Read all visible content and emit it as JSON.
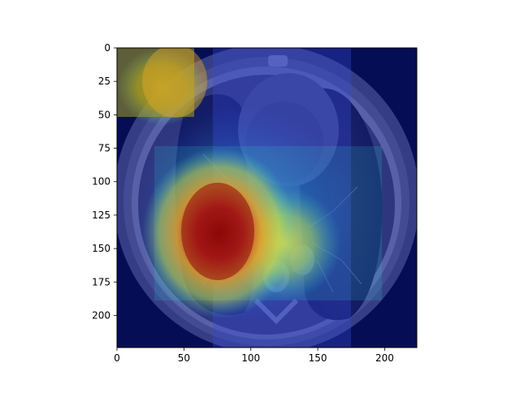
{
  "chart_data": {
    "type": "heatmap",
    "description_free": true,
    "x_ticks": [
      0,
      50,
      100,
      150,
      200
    ],
    "y_ticks": [
      0,
      25,
      50,
      75,
      100,
      125,
      150,
      175,
      200
    ],
    "xlim": [
      0,
      224
    ],
    "ylim": [
      224,
      0
    ],
    "title": "",
    "xlabel": "",
    "ylabel": "",
    "colormap": "jet",
    "hotspots": [
      {
        "x": 78,
        "y": 140,
        "level": 1.0
      },
      {
        "x": 62,
        "y": 20,
        "level": 0.6
      },
      {
        "x": 130,
        "y": 160,
        "level": 0.55
      }
    ]
  }
}
